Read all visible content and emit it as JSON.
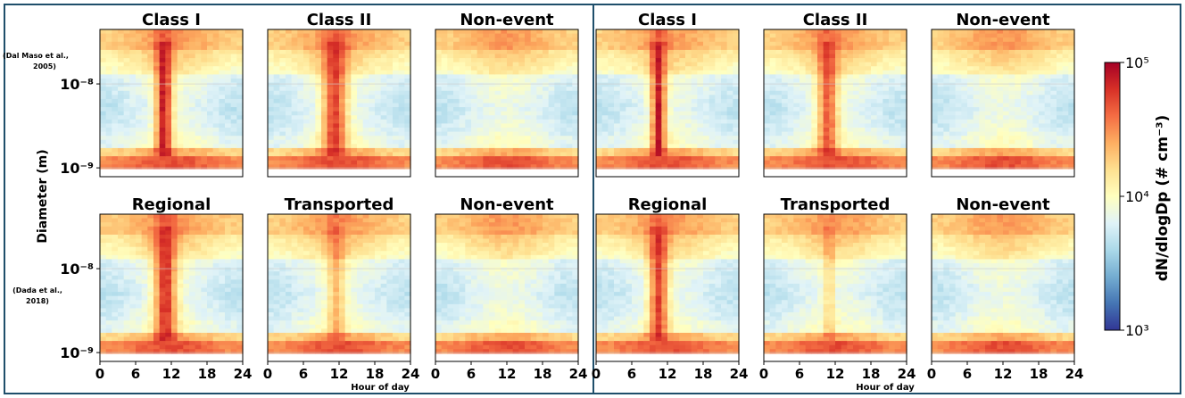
{
  "figure": {
    "ylabel": "Diameter (m)",
    "xlabel": "Hour of day",
    "colorbar_label": "dN/dlogDp (# cm⁻³)",
    "colorbar_ticks": [
      "10³",
      "10⁴",
      "10⁵"
    ],
    "row_references": [
      "(Dal Maso et al., 2005)",
      "(Dada et al., 2018)"
    ],
    "y_ticks": [
      "10⁻⁸",
      "10⁻⁹"
    ],
    "x_ticks": [
      "0",
      "6",
      "12",
      "18",
      "24"
    ]
  },
  "chart_data": {
    "type": "heatmap",
    "colormap": "RdYlBu_r",
    "color_scale": "log",
    "color_range": [
      1000,
      100000
    ],
    "x_range": [
      0,
      24
    ],
    "y_range_m": [
      8e-10,
      4e-08
    ],
    "y_scale": "log",
    "groups": [
      {
        "rows": [
          {
            "panels": [
              {
                "title": "Class I",
                "event": {
                  "start": 9.5,
                  "end": 12,
                  "strength": 1.0
                }
              },
              {
                "title": "Class II",
                "event": {
                  "start": 9,
                  "end": 13.5,
                  "strength": 0.85
                }
              },
              {
                "title": "Non-event",
                "event": null
              }
            ]
          },
          {
            "panels": [
              {
                "title": "Regional",
                "event": {
                  "start": 9,
                  "end": 13,
                  "strength": 0.9
                }
              },
              {
                "title": "Transported",
                "event": {
                  "start": 10,
                  "end": 13,
                  "strength": 0.45
                }
              },
              {
                "title": "Non-event",
                "event": null
              }
            ]
          }
        ]
      },
      {
        "rows": [
          {
            "panels": [
              {
                "title": "Class I",
                "event": {
                  "start": 9.5,
                  "end": 11.5,
                  "strength": 1.0
                }
              },
              {
                "title": "Class II",
                "event": {
                  "start": 9,
                  "end": 12.5,
                  "strength": 0.75
                }
              },
              {
                "title": "Non-event",
                "event": null
              }
            ]
          },
          {
            "panels": [
              {
                "title": "Regional",
                "event": {
                  "start": 9,
                  "end": 12,
                  "strength": 0.85
                }
              },
              {
                "title": "Transported",
                "event": {
                  "start": 10.5,
                  "end": 11.5,
                  "strength": 0.35
                }
              },
              {
                "title": "Non-event",
                "event": null
              }
            ]
          }
        ]
      }
    ]
  }
}
